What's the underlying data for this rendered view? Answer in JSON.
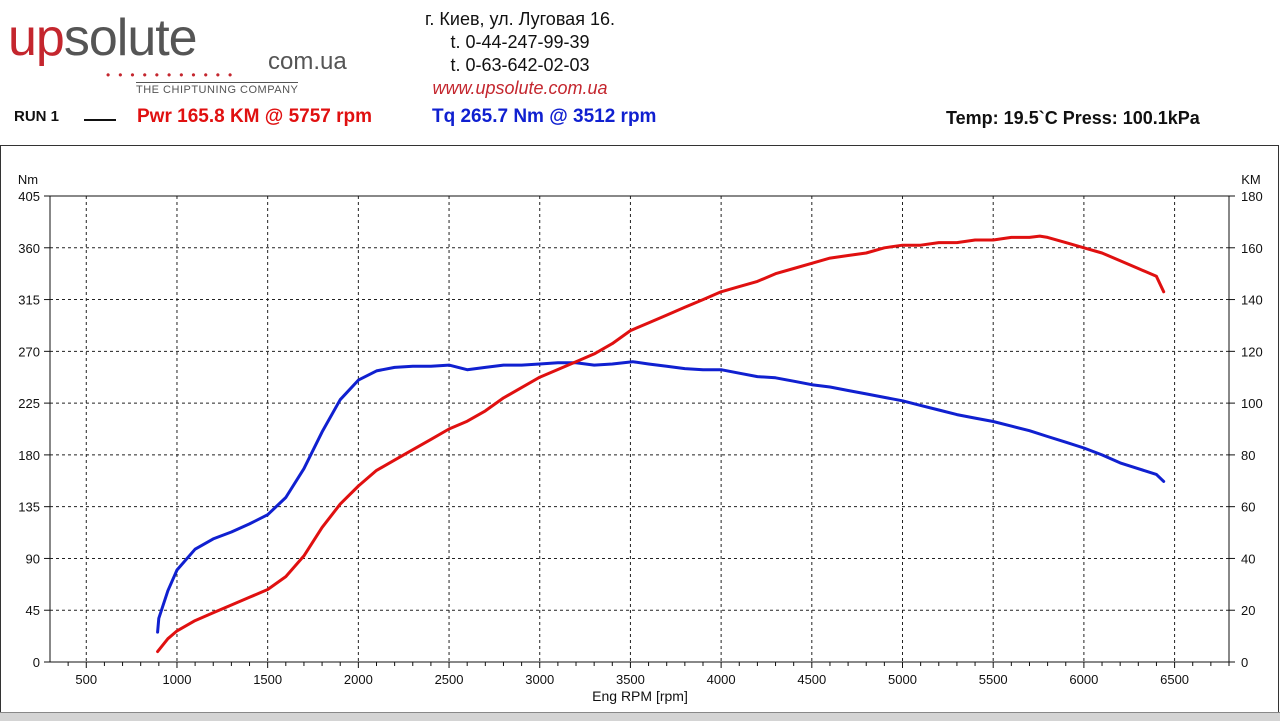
{
  "header": {
    "logo": {
      "brand": "upsolute",
      "domain": "com.ua",
      "tagline": "THE CHIPTUNING COMPANY"
    },
    "contact": {
      "address": "г. Киев, ул. Луговая 16.",
      "phone1": "t. 0-44-247-99-39",
      "phone2": "t. 0-63-642-02-03",
      "website": "www.upsolute.com.ua"
    }
  },
  "run": {
    "label": "RUN 1",
    "pwr": "Pwr  165.8 KM @ 5757 rpm",
    "tq": "Tq 265.7 Nm @ 3512 rpm",
    "env": "Temp: 19.5`C    Press: 100.1kPa"
  },
  "colors": {
    "power": "#e01010",
    "torque": "#1020d0",
    "brand_red": "#c4262e"
  },
  "chart_data": {
    "type": "line",
    "xlabel": "Eng RPM [rpm]",
    "ylabel_left": "Nm",
    "ylabel_right": "KM",
    "xlim": [
      300,
      6800
    ],
    "ylim_left": [
      0,
      405
    ],
    "ylim_right": [
      0,
      180
    ],
    "x_ticks": [
      500,
      1000,
      1500,
      2000,
      2500,
      3000,
      3500,
      4000,
      4500,
      5000,
      5500,
      6000,
      6500
    ],
    "y_ticks_left": [
      0,
      45,
      90,
      135,
      180,
      225,
      270,
      315,
      360,
      405
    ],
    "y_ticks_right": [
      0,
      20,
      40,
      60,
      80,
      100,
      120,
      140,
      160,
      180
    ],
    "grid": true,
    "series": [
      {
        "name": "Tq",
        "axis": "left",
        "color": "#1020d0",
        "points": [
          [
            893,
            26
          ],
          [
            900,
            38
          ],
          [
            950,
            62
          ],
          [
            1000,
            80
          ],
          [
            1100,
            98
          ],
          [
            1200,
            107
          ],
          [
            1300,
            113
          ],
          [
            1400,
            120
          ],
          [
            1500,
            128
          ],
          [
            1600,
            143
          ],
          [
            1700,
            168
          ],
          [
            1800,
            200
          ],
          [
            1900,
            228
          ],
          [
            2000,
            245
          ],
          [
            2100,
            253
          ],
          [
            2200,
            256
          ],
          [
            2300,
            257
          ],
          [
            2400,
            257
          ],
          [
            2500,
            258
          ],
          [
            2600,
            254
          ],
          [
            2700,
            256
          ],
          [
            2800,
            258
          ],
          [
            2900,
            258
          ],
          [
            3000,
            259
          ],
          [
            3100,
            260
          ],
          [
            3200,
            260
          ],
          [
            3300,
            258
          ],
          [
            3400,
            259
          ],
          [
            3512,
            261
          ],
          [
            3600,
            259
          ],
          [
            3700,
            257
          ],
          [
            3800,
            255
          ],
          [
            3900,
            254
          ],
          [
            4000,
            254
          ],
          [
            4100,
            251
          ],
          [
            4200,
            248
          ],
          [
            4300,
            247
          ],
          [
            4400,
            244
          ],
          [
            4500,
            241
          ],
          [
            4600,
            239
          ],
          [
            4700,
            236
          ],
          [
            4800,
            233
          ],
          [
            4900,
            230
          ],
          [
            5000,
            227
          ],
          [
            5100,
            223
          ],
          [
            5200,
            219
          ],
          [
            5300,
            215
          ],
          [
            5400,
            212
          ],
          [
            5500,
            209
          ],
          [
            5600,
            205
          ],
          [
            5700,
            201
          ],
          [
            5800,
            196
          ],
          [
            5900,
            191
          ],
          [
            6000,
            186
          ],
          [
            6100,
            180
          ],
          [
            6200,
            173
          ],
          [
            6300,
            168
          ],
          [
            6400,
            163
          ],
          [
            6440,
            157
          ]
        ]
      },
      {
        "name": "Pwr",
        "axis": "right",
        "color": "#e01010",
        "points": [
          [
            893,
            4
          ],
          [
            950,
            9
          ],
          [
            1000,
            12
          ],
          [
            1100,
            16
          ],
          [
            1200,
            19
          ],
          [
            1300,
            22
          ],
          [
            1400,
            25
          ],
          [
            1500,
            28
          ],
          [
            1600,
            33
          ],
          [
            1700,
            41
          ],
          [
            1800,
            52
          ],
          [
            1900,
            61
          ],
          [
            2000,
            68
          ],
          [
            2100,
            74
          ],
          [
            2200,
            78
          ],
          [
            2300,
            82
          ],
          [
            2400,
            86
          ],
          [
            2500,
            90
          ],
          [
            2600,
            93
          ],
          [
            2700,
            97
          ],
          [
            2800,
            102
          ],
          [
            2900,
            106
          ],
          [
            3000,
            110
          ],
          [
            3100,
            113
          ],
          [
            3200,
            116
          ],
          [
            3300,
            119
          ],
          [
            3400,
            123
          ],
          [
            3500,
            128
          ],
          [
            3600,
            131
          ],
          [
            3700,
            134
          ],
          [
            3800,
            137
          ],
          [
            3900,
            140
          ],
          [
            4000,
            143
          ],
          [
            4100,
            145
          ],
          [
            4200,
            147
          ],
          [
            4300,
            150
          ],
          [
            4400,
            152
          ],
          [
            4500,
            154
          ],
          [
            4600,
            156
          ],
          [
            4700,
            157
          ],
          [
            4800,
            158
          ],
          [
            4900,
            160
          ],
          [
            5000,
            161
          ],
          [
            5100,
            161
          ],
          [
            5200,
            162
          ],
          [
            5300,
            162
          ],
          [
            5400,
            163
          ],
          [
            5500,
            163
          ],
          [
            5600,
            164
          ],
          [
            5700,
            164
          ],
          [
            5757,
            164.5
          ],
          [
            5800,
            164
          ],
          [
            5900,
            162
          ],
          [
            6000,
            160
          ],
          [
            6100,
            158
          ],
          [
            6200,
            155
          ],
          [
            6300,
            152
          ],
          [
            6400,
            149
          ],
          [
            6440,
            143
          ]
        ]
      }
    ]
  }
}
